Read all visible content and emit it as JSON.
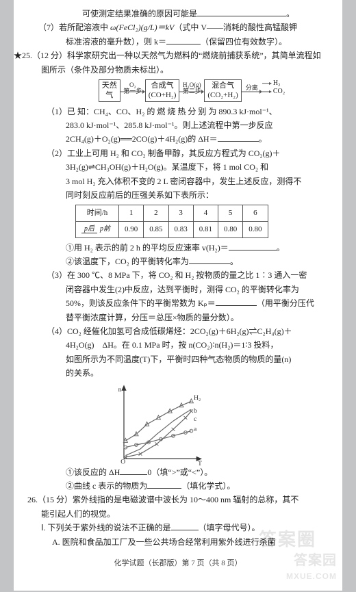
{
  "prelines": {
    "l1": "可使测定结果准确的原因可能是",
    "l2a": "（7）若所配溶液中 ",
    "l2b": "ω(FeCl₂)(g/L)＝kV",
    "l2c": "（式中 V——消耗的酸性高锰酸钾",
    "l3a": "标准溶液的毫升数），则 k＝",
    "l3b": "（保留四位有效数字）。"
  },
  "q25": {
    "head": "★25.（12 分）科学家研究出一种以天然气为燃料的“燃烧前捕获系统”，其简单流程如图所示（条件及部分物质未标出）。",
    "flow": {
      "box1a": "天然",
      "box1b": "气",
      "a1top": "O₂",
      "a1bot": "第一步",
      "box2a": "合成气",
      "box2b": "(CO+H₂)",
      "a2top": "H₂O(g)",
      "a2bot": "第二步",
      "box3a": "混合气",
      "box3b": "(CO₂+H₂)",
      "a3top": "分离",
      "out1": "H₂",
      "out2": "CO₂"
    },
    "p1a": "（1）已 知：CH₄、CO、H₂ 的 燃 烧 热 分 别 为 890.3 kJ·mol⁻¹、",
    "p1b": "283.0 kJ·mol⁻¹、285.8 kJ·mol⁻¹。则上述流程中第一步反应",
    "p1c": "2CH₄(g)＋O₂(g)══2CO(g)＋4H₂(g)的 ΔH＝",
    "p2a": "（2）工业上可用 H₂ 和 CO₂ 制备甲醇，其反应方程式为 CO₂(g)＋",
    "p2b": "3H₂(g)⇌CH₃OH(g)＋H₂O(g)。某温度下，将 1 mol CO₂ 和",
    "p2c": "3 mol H₂ 充入体积不变的 2 L 密闭容器中，发生上述反应，测得不",
    "p2d": "同时刻反应前后的压强关系如下表所示：",
    "table": {
      "h0": "时间/h",
      "cols": [
        "1",
        "2",
        "3",
        "4",
        "5",
        "6"
      ],
      "r0num": "p后",
      "r0den": "p前",
      "vals": [
        "0.90",
        "0.85",
        "0.83",
        "0.81",
        "0.80",
        "0.80"
      ]
    },
    "p2e": "①用 H₂ 表示的前 2 h 的平均反应速率 v(H₂)＝",
    "p2f": "②该温度下，CO₂ 的平衡转化率为",
    "p3a": "（3）在 300 ℃、8 MPa 下，将 CO₂ 和 H₂ 按物质的量之比 1∶3 通入一密",
    "p3b": "闭容器中发生(2)中反应，达到平衡时，测得 CO₂ 的平衡转化率为",
    "p3c": "50%，则该反应条件下的平衡常数为 Kₚ＝",
    "p3d": "（用平衡分压代",
    "p3e": "替平衡浓度计算，分压＝总压×物质的量分数）。",
    "p4a": "（4）CO₂ 经催化加氢可合成低碳烯烃：2CO₂(g)＋6H₂(g)⇌C₂H₄(g)＋",
    "p4b": "4H₂O(g)　ΔH。在 0.1 MPa 时，按 n(CO₂)∶n(H₂)＝1∶3 投料，",
    "p4c": "如图所示为不同温度(T)下，平衡时四种气态物质的物质的量(n)",
    "p4d": "的关系。",
    "chart": {
      "labels": {
        "y": "n",
        "x": "T",
        "H2": "H₂",
        "a": "a",
        "b": "b",
        "c": "c"
      },
      "axis_color": "#333333",
      "bg_color": "#ffffff",
      "series": {
        "H2": {
          "color": "#666666",
          "width": 1,
          "marker": "triangle",
          "points": [
            [
              12,
              70
            ],
            [
              25,
              62
            ],
            [
              38,
              50
            ],
            [
              52,
              42
            ],
            [
              66,
              34
            ],
            [
              80,
              27
            ],
            [
              92,
              22
            ]
          ]
        },
        "a": {
          "color": "#666666",
          "width": 1,
          "marker": "circle",
          "points": [
            [
              12,
              78
            ],
            [
              25,
              75
            ],
            [
              40,
              72
            ],
            [
              55,
              68
            ],
            [
              70,
              64
            ],
            [
              85,
              60
            ],
            [
              92,
              58
            ]
          ]
        },
        "b": {
          "color": "#666666",
          "width": 1,
          "marker": "none",
          "points": [
            [
              12,
              88
            ],
            [
              30,
              80
            ],
            [
              50,
              62
            ],
            [
              70,
              46
            ],
            [
              85,
              36
            ],
            [
              92,
              32
            ]
          ]
        },
        "c": {
          "color": "#666666",
          "width": 1,
          "marker": "x",
          "points": [
            [
              12,
              90
            ],
            [
              30,
              86
            ],
            [
              50,
              74
            ],
            [
              70,
              56
            ],
            [
              85,
              42
            ],
            [
              92,
              34
            ]
          ]
        }
      }
    },
    "p4e": "①该反应的 ΔH",
    "p4f": "0（填“>”或“<”）。",
    "p4g": "②曲线 c 表示的物质为",
    "p4h": "（填化学式）。"
  },
  "q26": {
    "heada": "26.（15 分）紫外线指的是电磁波谱中波长为 10～400 nm 辐射的总称，其不",
    "headb": "能引起人们的视觉。",
    "Ia": "Ⅰ. 下列关于紫外线的说法不正确的是",
    "Iblab": "（填字母代号）。",
    "A": "A. 医院和食品加工厂及一些公共场合经常利用紫外线进行杀菌"
  },
  "footer": "化学试题（长郡版）第 7 页（共 8 页）",
  "wm1a": "答案园",
  "wm1b": "MXUE.COM",
  "wm2": "答案圈"
}
